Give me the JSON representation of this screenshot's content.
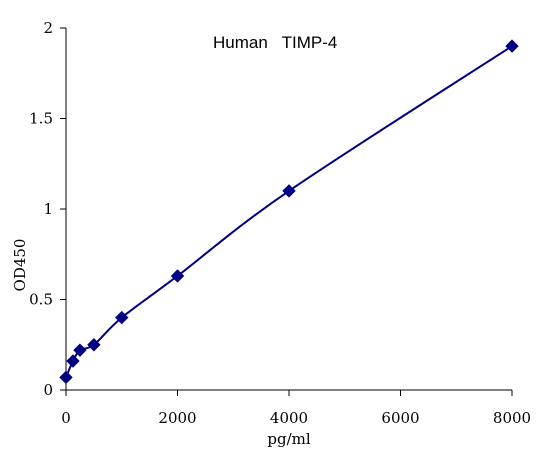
{
  "chart_data": {
    "type": "scatter",
    "title": "Human   TIMP-4",
    "xlabel": "pg/ml",
    "ylabel": "OD450",
    "xlim": [
      0,
      8000
    ],
    "ylim": [
      0,
      2
    ],
    "x_ticks": [
      0,
      2000,
      4000,
      6000,
      8000
    ],
    "x_tick_labels": [
      "0",
      "2000",
      "4000",
      "6000",
      "8000"
    ],
    "y_ticks": [
      0,
      0.5,
      1,
      1.5,
      2
    ],
    "y_tick_labels": [
      "0",
      "0.5",
      "1",
      "1.5",
      "2"
    ],
    "grid": false,
    "legend": false,
    "series": [
      {
        "x": [
          0,
          125,
          250,
          500,
          1000,
          2000,
          4000,
          8000
        ],
        "y": [
          0.07,
          0.16,
          0.22,
          0.25,
          0.4,
          0.63,
          1.1,
          1.9
        ],
        "color": "#000080",
        "marker": "diamond",
        "line": "smooth"
      }
    ]
  }
}
